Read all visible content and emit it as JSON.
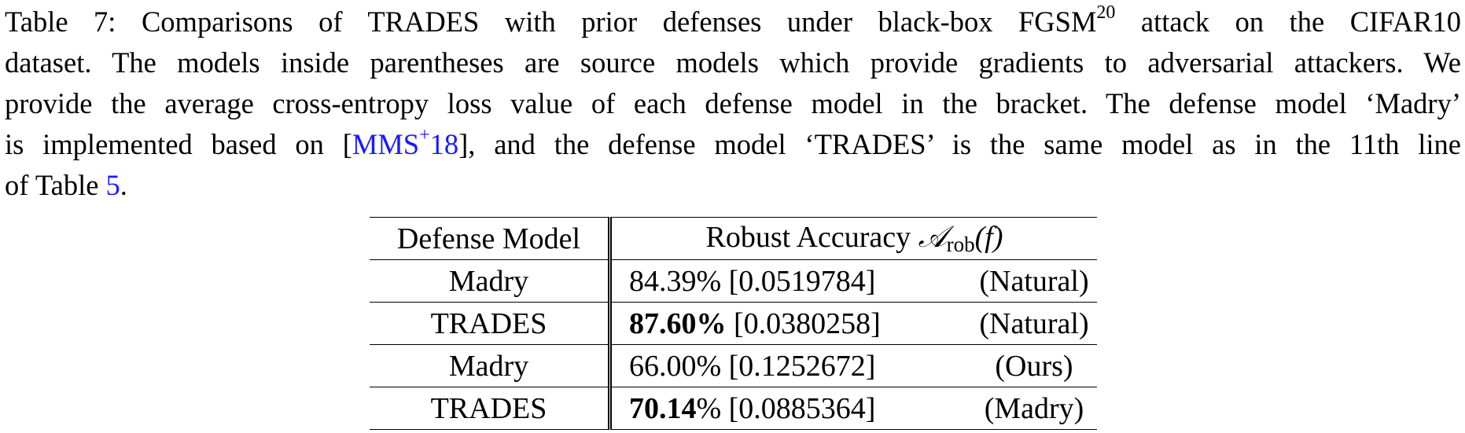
{
  "caption": {
    "line1_pre": "Table 7: Comparisons of TRADES with prior defenses under black-box FGSM",
    "line1_sup": "20",
    "line1_post": " attack on the CIFAR10",
    "line2": "dataset. The models inside parentheses are source models which provide gradients to adversarial attackers. We",
    "line3": "provide the average cross-entropy loss value of each defense model in the bracket. The defense model ‘Madry’",
    "line4_pre": "is implemented based on [",
    "line4_cite": "MMS",
    "line4_cite_sup": "+",
    "line4_cite_post": "18",
    "line4_post": "], and the defense model ‘TRADES’ is the same model as in the 11th line",
    "line5_pre": "of Table ",
    "line5_ref": "5",
    "line5_post": "."
  },
  "table": {
    "header_model": "Defense Model",
    "header_acc_text": "Robust Accuracy ",
    "header_acc_symbol": "𝒜",
    "header_acc_sub": "rob",
    "header_acc_arg": "(f)",
    "rows": [
      {
        "model": "Madry",
        "acc": "84.39%",
        "loss": " [0.0519784]",
        "source": "(Natural)"
      },
      {
        "model": "TRADES",
        "acc": "87.60%",
        "loss": " [0.0380258]",
        "source": "(Natural)"
      },
      {
        "model": "Madry",
        "acc": "66.00%",
        "loss": " [0.1252672]",
        "source": "(Ours)"
      },
      {
        "model": "TRADES",
        "acc": "70.14",
        "acc_suffix": "%",
        "loss": " [0.0885364]",
        "source": "(Madry)"
      }
    ]
  }
}
